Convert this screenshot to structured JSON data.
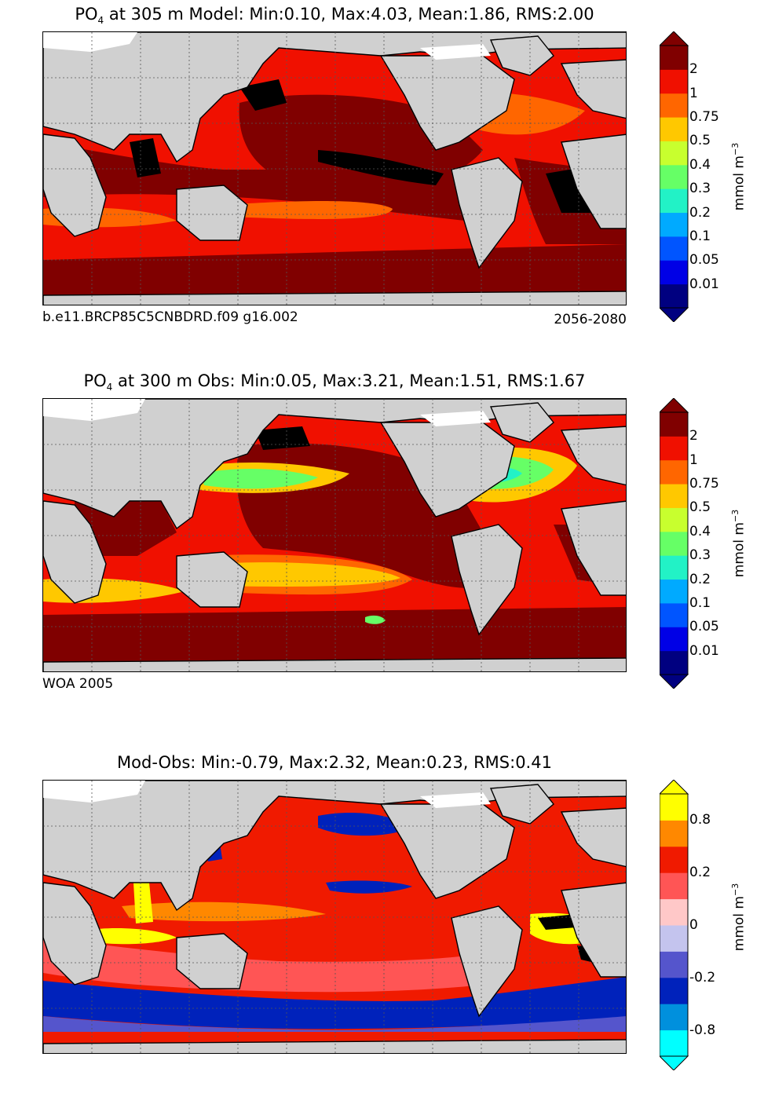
{
  "panels": [
    {
      "id": "model",
      "title_var": "PO",
      "title_sub": "4",
      "title_rest": " at 305 m Model: Min:0.10, Max:4.03, Mean:1.86, RMS:2.00",
      "foot_left": "b.e11.BRCP85C5CNBDRD.f09 g16.002",
      "foot_right": "2056-2080",
      "colorbar": {
        "colors": [
          "#000080",
          "#0000e6",
          "#0055ff",
          "#00aaff",
          "#22f2c6",
          "#66ff66",
          "#c8ff2e",
          "#ffc800",
          "#ff6600",
          "#f01000",
          "#800000"
        ],
        "ticks": [
          "0.01",
          "0.05",
          "0.1",
          "0.2",
          "0.3",
          "0.4",
          "0.5",
          "0.75",
          "1",
          "2"
        ],
        "unit": "mmol m",
        "unit_sup": "−3"
      }
    },
    {
      "id": "obs",
      "title_var": "PO",
      "title_sub": "4",
      "title_rest": " at 300 m Obs: Min:0.05, Max:3.21, Mean:1.51, RMS:1.67",
      "foot_left": "WOA 2005",
      "foot_right": "",
      "colorbar": {
        "colors": [
          "#000080",
          "#0000e6",
          "#0055ff",
          "#00aaff",
          "#22f2c6",
          "#66ff66",
          "#c8ff2e",
          "#ffc800",
          "#ff6600",
          "#f01000",
          "#800000"
        ],
        "ticks": [
          "0.01",
          "0.05",
          "0.1",
          "0.2",
          "0.3",
          "0.4",
          "0.5",
          "0.75",
          "1",
          "2"
        ],
        "unit": "mmol m",
        "unit_sup": "−3"
      }
    },
    {
      "id": "diff",
      "title_var": "",
      "title_sub": "",
      "title_rest": "Mod-Obs: Min:-0.79, Max:2.32, Mean:0.23, RMS:0.41",
      "foot_left": "",
      "foot_right": "",
      "colorbar": {
        "colors": [
          "#00ffff",
          "#0090dd",
          "#0022bb",
          "#5555cc",
          "#c4c4ee",
          "#ffc8c8",
          "#ff5555",
          "#f01a00",
          "#ff8800",
          "#ffff00"
        ],
        "ticks": [
          "-0.8",
          "",
          "-0.2",
          "",
          "0",
          "",
          "0.2",
          "",
          "0.8"
        ],
        "unit": "mmol m",
        "unit_sup": "−3"
      }
    }
  ],
  "colors": {
    "land": "#d0d0d0",
    "ice": "#ffffff",
    "gridline": "#555555"
  }
}
